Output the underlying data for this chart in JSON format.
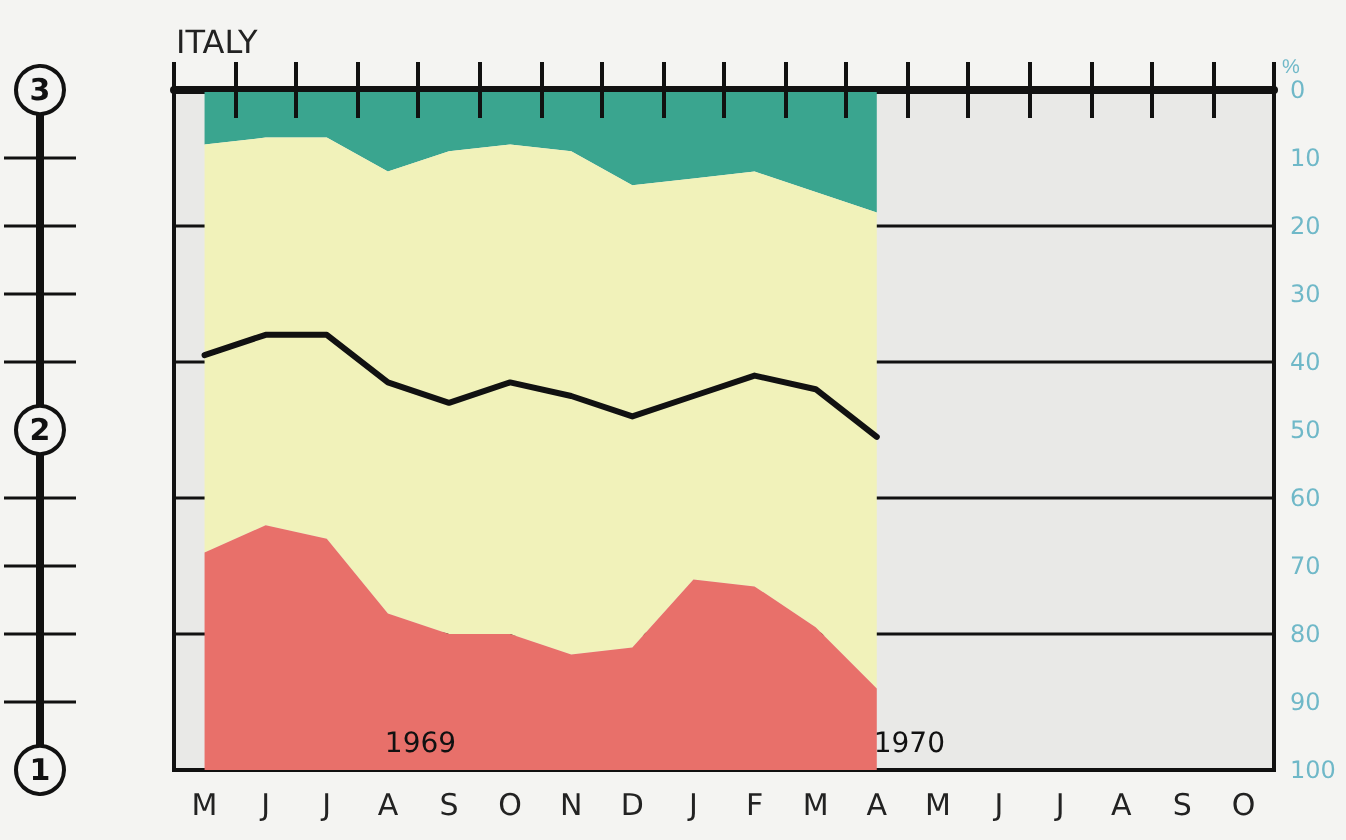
{
  "chart_data": {
    "type": "area",
    "title": "ITALY",
    "ylabel": "%",
    "categories": [
      "M",
      "J",
      "J",
      "A",
      "S",
      "O",
      "N",
      "D",
      "J",
      "F",
      "M",
      "A",
      "M",
      "J",
      "J",
      "A",
      "S",
      "O"
    ],
    "stacked": true,
    "series": [
      {
        "color": "#3aa58f",
        "values": [
          8,
          7,
          7,
          12,
          9,
          8,
          9,
          14,
          13,
          12,
          15,
          18,
          null,
          null,
          null,
          null,
          null,
          null
        ]
      },
      {
        "color": "#f1f2ba",
        "values": [
          60,
          57,
          59,
          65,
          71,
          72,
          74,
          68,
          59,
          61,
          64,
          70,
          null,
          null,
          null,
          null,
          null,
          null
        ]
      },
      {
        "color": "#e8706a",
        "values": [
          32,
          36,
          34,
          23,
          20,
          20,
          17,
          18,
          28,
          27,
          21,
          12,
          null,
          null,
          null,
          null,
          null,
          null
        ]
      },
      {
        "type": "line",
        "color": "#111111",
        "values": [
          39,
          36,
          36,
          43,
          46,
          43,
          45,
          48,
          45,
          42,
          44,
          51,
          null,
          null,
          null,
          null,
          null,
          null
        ]
      }
    ],
    "ylim": [
      100,
      0
    ],
    "yticks": [
      0,
      10,
      20,
      30,
      40,
      50,
      60,
      70,
      80,
      90,
      100
    ],
    "grid": "y",
    "marker": "none",
    "line_style": "solid",
    "annotations": [
      "3",
      "2",
      "1",
      "1969",
      "1970"
    ]
  }
}
